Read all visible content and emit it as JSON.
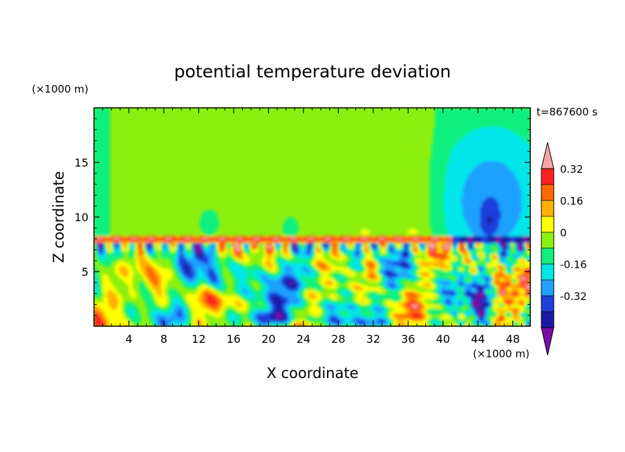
{
  "chart_data": {
    "type": "heatmap",
    "title": "potential temperature deviation",
    "xlabel": "X coordinate",
    "ylabel": "Z coordinate",
    "x_unit": "(×1000 m)",
    "y_unit": "(×1000 m)",
    "time_label": "t=867600 s",
    "xlim": [
      0,
      50
    ],
    "ylim": [
      0,
      20
    ],
    "x_ticks": [
      4,
      8,
      12,
      16,
      20,
      24,
      28,
      32,
      36,
      40,
      44,
      48
    ],
    "y_ticks": [
      5,
      10,
      15
    ],
    "grid": false,
    "colorbar": {
      "levels": [
        -0.4,
        -0.32,
        -0.24,
        -0.16,
        -0.08,
        0,
        0.08,
        0.16,
        0.24,
        0.32,
        0.4
      ],
      "colors": [
        "#7a0fa6",
        "#1a1aa6",
        "#1f3fd9",
        "#1ea1ff",
        "#00e6ea",
        "#10f080",
        "#8bf010",
        "#ffff00",
        "#ffb000",
        "#ff6a00",
        "#ff2020",
        "#f4a4a4"
      ],
      "labels": [
        "0.32",
        "0.16",
        "0",
        "-0.16",
        "-0.32"
      ],
      "label_values": [
        0.32,
        0.16,
        0,
        -0.16,
        -0.32
      ],
      "extend": "both"
    },
    "layers": {
      "upper_background": 0.02,
      "inversion_height": 8.0,
      "upper_right_cold_plume": {
        "x_range": [
          40,
          50
        ],
        "z_range": [
          8,
          19
        ],
        "min_value": -0.2
      },
      "lower_turbulent_region_z": [
        0,
        8
      ]
    }
  }
}
